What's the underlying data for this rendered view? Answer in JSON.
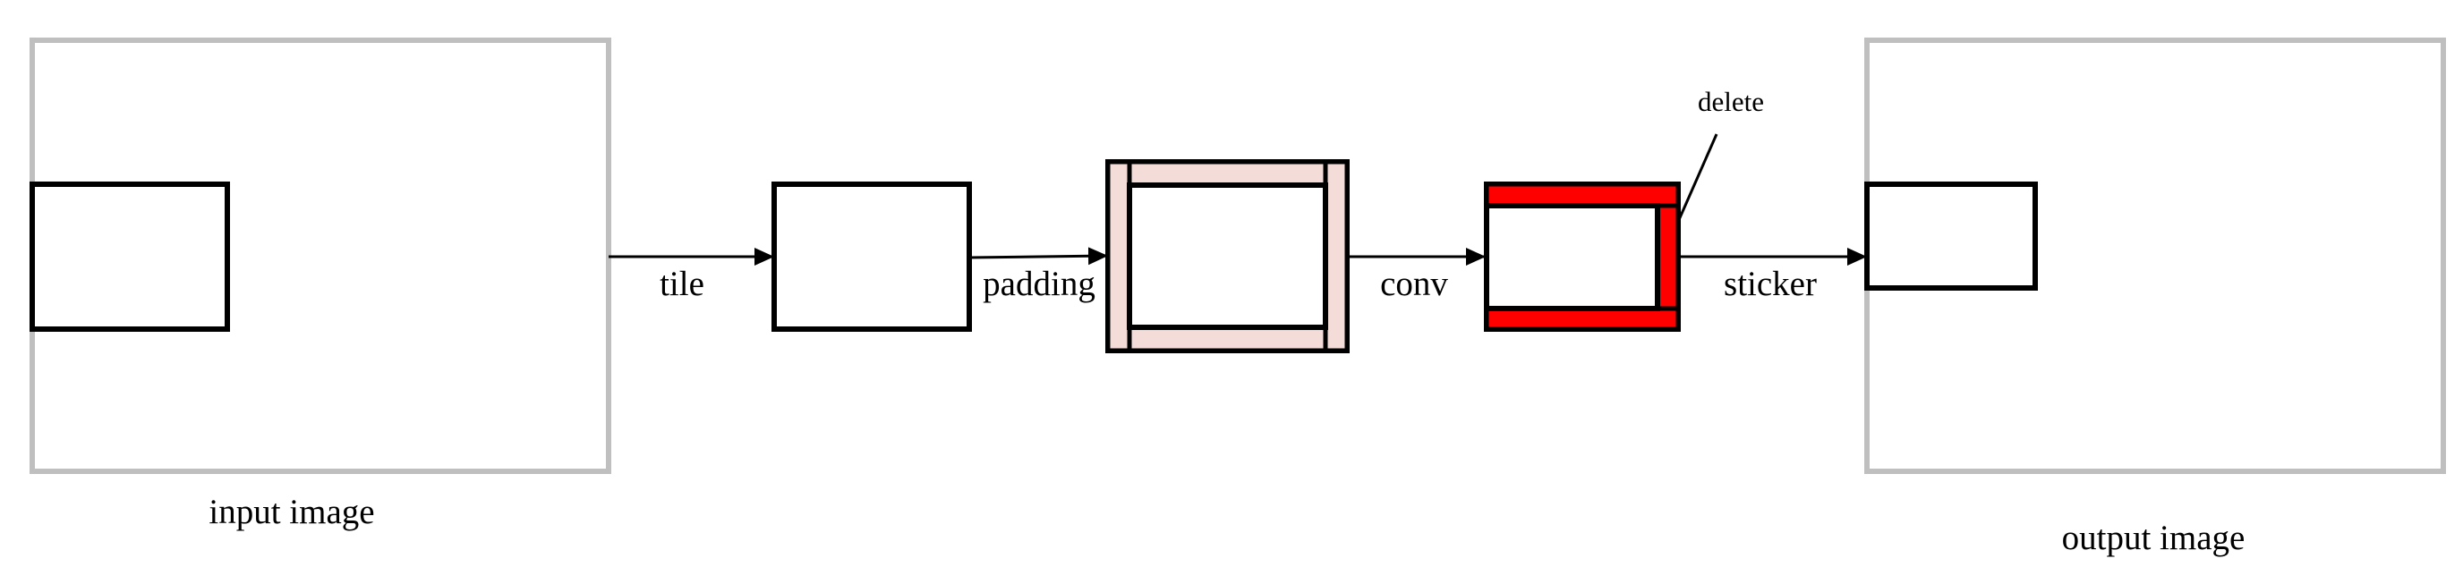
{
  "labels": {
    "input_image": "input image",
    "tile": "tile",
    "padding": "padding",
    "conv": "conv",
    "delete": "delete",
    "sticker": "sticker",
    "output_image": "output image"
  },
  "colors": {
    "image_border": "#bfbfbf",
    "box_border": "#000000",
    "padding_fill": "#f4dcd8",
    "delete_fill": "#ff0000",
    "background": "#ffffff"
  }
}
